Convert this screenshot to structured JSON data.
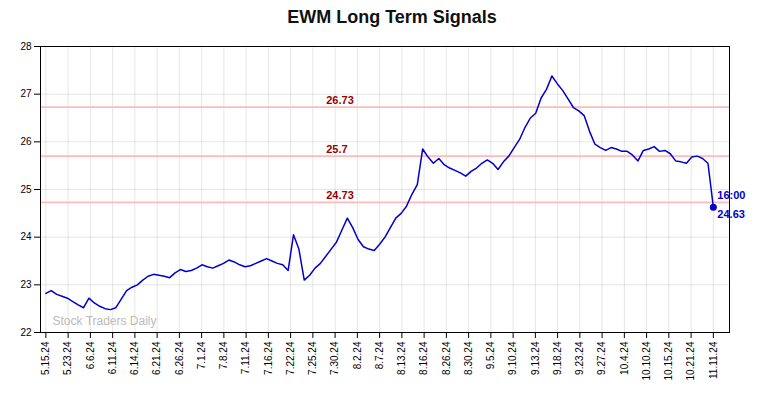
{
  "chart_data": {
    "type": "line",
    "title": "EWM Long Term Signals",
    "color": "#0000cc",
    "x": [
      0,
      1,
      2,
      3,
      4,
      5,
      6,
      7,
      8,
      9,
      10,
      11,
      12,
      13,
      14,
      15,
      16,
      17,
      18,
      19,
      20,
      21,
      22,
      23,
      24,
      25,
      26,
      27,
      28,
      29,
      30,
      31,
      32,
      33,
      34,
      35,
      36,
      37,
      38,
      39,
      40,
      41,
      42,
      43,
      44,
      45,
      46,
      47,
      48,
      49,
      50,
      51,
      52,
      53,
      54,
      55,
      56,
      57,
      58,
      59,
      60,
      61,
      62,
      63,
      64,
      65,
      66,
      67,
      68,
      69,
      70,
      71,
      72,
      73,
      74,
      75,
      76,
      77,
      78,
      79,
      80,
      81,
      82,
      83,
      84,
      85,
      86,
      87,
      88,
      89,
      90,
      91,
      92,
      93,
      94,
      95,
      96,
      97,
      98,
      99,
      100,
      101,
      102,
      103,
      104,
      105,
      106,
      107,
      108,
      109,
      110,
      111,
      112,
      113,
      114,
      115,
      116,
      117,
      118,
      119,
      120,
      121,
      122,
      123,
      124
    ],
    "values": [
      22.82,
      22.88,
      22.8,
      22.76,
      22.72,
      22.65,
      22.58,
      22.52,
      22.72,
      22.62,
      22.55,
      22.5,
      22.48,
      22.52,
      22.7,
      22.88,
      22.95,
      23.0,
      23.1,
      23.18,
      23.22,
      23.2,
      23.18,
      23.15,
      23.25,
      23.32,
      23.28,
      23.3,
      23.35,
      23.42,
      23.38,
      23.35,
      23.4,
      23.45,
      23.52,
      23.48,
      23.42,
      23.38,
      23.4,
      23.45,
      23.5,
      23.55,
      23.5,
      23.45,
      23.42,
      23.3,
      24.05,
      23.75,
      23.1,
      23.2,
      23.35,
      23.45,
      23.6,
      23.75,
      23.9,
      24.15,
      24.4,
      24.2,
      23.95,
      23.8,
      23.75,
      23.72,
      23.85,
      24.0,
      24.2,
      24.4,
      24.5,
      24.65,
      24.9,
      25.1,
      25.85,
      25.68,
      25.55,
      25.65,
      25.52,
      25.45,
      25.4,
      25.35,
      25.28,
      25.38,
      25.45,
      25.55,
      25.62,
      25.55,
      25.42,
      25.58,
      25.7,
      25.88,
      26.05,
      26.3,
      26.5,
      26.6,
      26.92,
      27.1,
      27.38,
      27.22,
      27.08,
      26.9,
      26.72,
      26.65,
      26.55,
      26.22,
      25.95,
      25.88,
      25.82,
      25.88,
      25.85,
      25.8,
      25.8,
      25.72,
      25.6,
      25.82,
      25.85,
      25.9,
      25.8,
      25.82,
      25.75,
      25.6,
      25.58,
      25.55,
      25.68,
      25.7,
      25.65,
      25.55,
      24.63
    ],
    "xlim": [
      -1,
      127
    ],
    "xticks": [
      {
        "value": 0,
        "label": "5.15.24"
      },
      {
        "value": 4.1333,
        "label": "5.23.24"
      },
      {
        "value": 8.2667,
        "label": "6.6.24"
      },
      {
        "value": 12.4,
        "label": "6.11.24"
      },
      {
        "value": 16.5333,
        "label": "6.14.24"
      },
      {
        "value": 20.6667,
        "label": "6.21.24"
      },
      {
        "value": 24.8,
        "label": "6.26.24"
      },
      {
        "value": 28.9333,
        "label": "7.1.24"
      },
      {
        "value": 33.0667,
        "label": "7.8.24"
      },
      {
        "value": 37.2,
        "label": "7.11.24"
      },
      {
        "value": 41.3333,
        "label": "7.16.24"
      },
      {
        "value": 45.4667,
        "label": "7.22.24"
      },
      {
        "value": 49.6,
        "label": "7.25.24"
      },
      {
        "value": 53.7333,
        "label": "7.30.24"
      },
      {
        "value": 57.8667,
        "label": "8.2.24"
      },
      {
        "value": 62,
        "label": "8.7.24"
      },
      {
        "value": 66.1333,
        "label": "8.13.24"
      },
      {
        "value": 70.2667,
        "label": "8.16.24"
      },
      {
        "value": 74.4,
        "label": "8.26.24"
      },
      {
        "value": 78.5333,
        "label": "8.30.24"
      },
      {
        "value": 82.6667,
        "label": "9.5.24"
      },
      {
        "value": 86.8,
        "label": "9.10.24"
      },
      {
        "value": 90.9333,
        "label": "9.13.24"
      },
      {
        "value": 95.0667,
        "label": "9.18.24"
      },
      {
        "value": 99.2,
        "label": "9.23.24"
      },
      {
        "value": 103.3333,
        "label": "9.27.24"
      },
      {
        "value": 107.4667,
        "label": "10.4.24"
      },
      {
        "value": 111.6,
        "label": "10.10.24"
      },
      {
        "value": 115.7333,
        "label": "10.15.24"
      },
      {
        "value": 119.8667,
        "label": "10.21.24"
      },
      {
        "value": 124,
        "label": "11.11.24"
      }
    ],
    "ylim": [
      22,
      28
    ],
    "yticks": [
      22,
      23,
      24,
      25,
      26,
      27,
      28
    ],
    "grid": true,
    "hlines": [
      {
        "value": 26.73,
        "label": "26.73",
        "color": "#990000",
        "line_color": "#ffbbbb"
      },
      {
        "value": 25.7,
        "label": "25.7",
        "color": "#990000",
        "line_color": "#ffbbbb"
      },
      {
        "value": 24.73,
        "label": "24.73",
        "color": "#990000",
        "line_color": "#ffbbbb"
      }
    ],
    "last_point": {
      "x": 124,
      "y": 24.63,
      "color": "#0000cc",
      "label": "16:00",
      "value_label": "24.63"
    },
    "watermark": {
      "text": "Stock Traders Daily",
      "color": "#bbbbbb"
    }
  }
}
